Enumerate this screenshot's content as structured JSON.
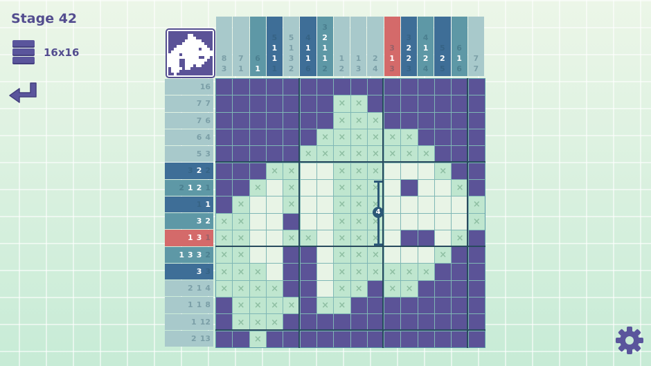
{
  "header": {
    "stage": "Stage 42",
    "size": "16x16",
    "menu_icon": "menu-icon",
    "back_icon": "back-arrow-icon",
    "settings_icon": "gear-icon"
  },
  "colors": {
    "filled": "#5b5397",
    "marked": "#bfe6cf",
    "empty": "#e8f4e6",
    "clue_light": "#a8c9cb",
    "clue_mid": "#5e98a6",
    "clue_dark": "#3e6e97",
    "clue_error": "#d46a6a"
  },
  "column_clues": [
    {
      "style": "light",
      "nums": [
        {
          "v": "8",
          "on": false
        },
        {
          "v": "3",
          "on": false
        }
      ]
    },
    {
      "style": "light",
      "nums": [
        {
          "v": "7",
          "on": false
        },
        {
          "v": "1",
          "on": false
        }
      ]
    },
    {
      "style": "mid",
      "nums": [
        {
          "v": "6",
          "on": false
        },
        {
          "v": "1",
          "on": true
        }
      ]
    },
    {
      "style": "dark",
      "nums": [
        {
          "v": "5",
          "on": false
        },
        {
          "v": "1",
          "on": true
        },
        {
          "v": "1",
          "on": true
        },
        {
          "v": "1",
          "on": false
        }
      ]
    },
    {
      "style": "light",
      "nums": [
        {
          "v": "5",
          "on": false
        },
        {
          "v": "1",
          "on": false
        },
        {
          "v": "3",
          "on": false
        },
        {
          "v": "2",
          "on": false
        }
      ]
    },
    {
      "style": "dark",
      "nums": [
        {
          "v": "4",
          "on": false
        },
        {
          "v": "1",
          "on": true
        },
        {
          "v": "1",
          "on": true
        },
        {
          "v": "6",
          "on": false
        }
      ]
    },
    {
      "style": "mid",
      "nums": [
        {
          "v": "3",
          "on": false
        },
        {
          "v": "2",
          "on": true
        },
        {
          "v": "1",
          "on": true
        },
        {
          "v": "1",
          "on": true
        },
        {
          "v": "2",
          "on": false
        }
      ]
    },
    {
      "style": "light",
      "nums": [
        {
          "v": "1",
          "on": false
        },
        {
          "v": "2",
          "on": false
        }
      ]
    },
    {
      "style": "light",
      "nums": [
        {
          "v": "1",
          "on": false
        },
        {
          "v": "3",
          "on": false
        }
      ]
    },
    {
      "style": "light",
      "nums": [
        {
          "v": "2",
          "on": false
        },
        {
          "v": "4",
          "on": false
        }
      ]
    },
    {
      "style": "error",
      "nums": [
        {
          "v": "3",
          "on": false
        },
        {
          "v": "1",
          "on": true
        },
        {
          "v": "3",
          "on": false
        }
      ]
    },
    {
      "style": "dark",
      "nums": [
        {
          "v": "3",
          "on": false
        },
        {
          "v": "2",
          "on": true
        },
        {
          "v": "2",
          "on": true
        },
        {
          "v": "3",
          "on": false
        }
      ]
    },
    {
      "style": "mid",
      "nums": [
        {
          "v": "4",
          "on": false
        },
        {
          "v": "1",
          "on": true
        },
        {
          "v": "2",
          "on": true
        },
        {
          "v": "4",
          "on": false
        }
      ]
    },
    {
      "style": "dark",
      "nums": [
        {
          "v": "5",
          "on": false
        },
        {
          "v": "2",
          "on": true
        },
        {
          "v": "5",
          "on": false
        }
      ]
    },
    {
      "style": "mid",
      "nums": [
        {
          "v": "6",
          "on": false
        },
        {
          "v": "1",
          "on": true
        },
        {
          "v": "6",
          "on": false
        }
      ]
    },
    {
      "style": "light",
      "nums": [
        {
          "v": "7",
          "on": false
        },
        {
          "v": "7",
          "on": false
        }
      ]
    }
  ],
  "row_clues": [
    {
      "style": "light",
      "nums": [
        {
          "v": "16",
          "on": false
        }
      ]
    },
    {
      "style": "light",
      "nums": [
        {
          "v": "7",
          "on": false
        },
        {
          "v": "7",
          "on": false
        }
      ]
    },
    {
      "style": "light",
      "nums": [
        {
          "v": "7",
          "on": false
        },
        {
          "v": "6",
          "on": false
        }
      ]
    },
    {
      "style": "light",
      "nums": [
        {
          "v": "6",
          "on": false
        },
        {
          "v": "4",
          "on": false
        }
      ]
    },
    {
      "style": "light",
      "nums": [
        {
          "v": "5",
          "on": false
        },
        {
          "v": "3",
          "on": false
        }
      ]
    },
    {
      "style": "dark",
      "nums": [
        {
          "v": "3",
          "on": false
        },
        {
          "v": "2",
          "on": true
        },
        {
          "v": "2",
          "on": false
        }
      ]
    },
    {
      "style": "mid",
      "nums": [
        {
          "v": "2",
          "on": false
        },
        {
          "v": "1",
          "on": true
        },
        {
          "v": "2",
          "on": true
        },
        {
          "v": "1",
          "on": false
        }
      ]
    },
    {
      "style": "dark",
      "nums": [
        {
          "v": "1",
          "on": false
        },
        {
          "v": "1",
          "on": true
        }
      ]
    },
    {
      "style": "mid",
      "nums": [
        {
          "v": "3",
          "on": true
        },
        {
          "v": "2",
          "on": true
        }
      ]
    },
    {
      "style": "error",
      "nums": [
        {
          "v": "1",
          "on": true
        },
        {
          "v": "3",
          "on": true
        },
        {
          "v": "1",
          "on": false
        }
      ]
    },
    {
      "style": "mid",
      "nums": [
        {
          "v": "1",
          "on": true
        },
        {
          "v": "3",
          "on": true
        },
        {
          "v": "3",
          "on": true
        },
        {
          "v": "2",
          "on": false
        }
      ]
    },
    {
      "style": "dark",
      "nums": [
        {
          "v": "3",
          "on": true
        },
        {
          "v": "3",
          "on": false
        }
      ]
    },
    {
      "style": "light",
      "nums": [
        {
          "v": "2",
          "on": false
        },
        {
          "v": "1",
          "on": false
        },
        {
          "v": "4",
          "on": false
        }
      ]
    },
    {
      "style": "light",
      "nums": [
        {
          "v": "1",
          "on": false
        },
        {
          "v": "1",
          "on": false
        },
        {
          "v": "8",
          "on": false
        }
      ]
    },
    {
      "style": "light",
      "nums": [
        {
          "v": "1",
          "on": false
        },
        {
          "v": "12",
          "on": false
        }
      ]
    },
    {
      "style": "light",
      "nums": [
        {
          "v": "2",
          "on": false
        },
        {
          "v": "13",
          "on": false
        }
      ]
    }
  ],
  "grid": [
    "FFFFFFFFFFFFFFFF",
    "FFFFFFFXXFFFFFFF",
    "FFFFFFFXXXFFFFFF",
    "FFFFFFXXXXXXFFFF",
    "FFFFFXXXXXXXXFFF",
    "FFFXXWWXXXWWWXFF",
    "FFXWXWWXXXWFWWXF",
    "FXWWXWWXXXWWWWWX",
    "XXWWFWWXXXWWWWWX",
    "XXWWXXWXXXWFFWXF",
    "XXWWFFWXXXWWWXFF",
    "XXXWFFWXXXXXXFFF",
    "XXXXFFWXXFXXFFFF",
    "FXXXXFXXFFFFFFFF",
    "FXXXFFFFFFFFFFFF",
    "FFXFFFFFFFFFFFFF"
  ],
  "mark_glyph": "×",
  "measure": {
    "length": "4"
  }
}
